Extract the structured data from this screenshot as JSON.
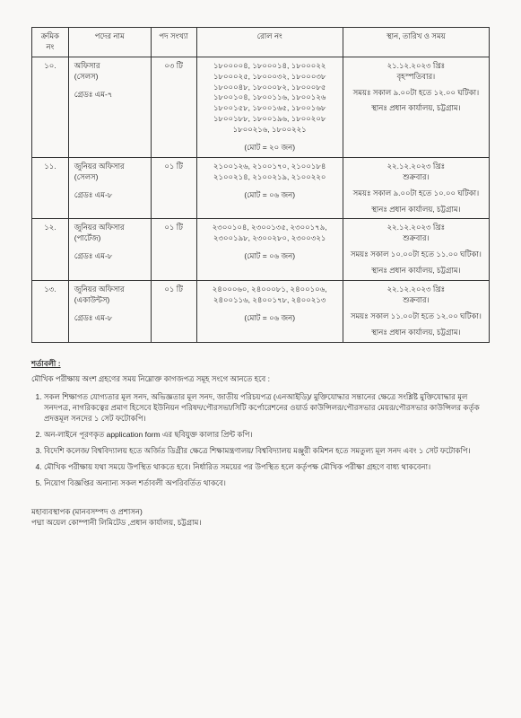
{
  "table": {
    "headers": {
      "serial": "ক্রমিক নং",
      "post": "পদের নাম",
      "count": "পদ সংখ্যা",
      "roll": "রোল নং",
      "venue": "স্থান, তারিখ ও সময়"
    },
    "rows": [
      {
        "serial": "১০.",
        "post_line1": "অফিসার",
        "post_line2": "(সেলস)",
        "post_line3": "গ্রেডঃ এম-৭",
        "count": "০৩ টি",
        "roll_lines": "১৮০০০০৪, ১৮০০০১৪, ১৮০০০২২\n১৮০০০২৫, ১৮০০০৩২, ১৮০০০৩৮\n১৮০০০৪৮, ১৮০০০৮২, ১৮০০০৮৫\n১৮০০১০৪, ১৮০০১১৬, ১৮০০১২৬\n১৮০০১৫৮, ১৮০০১৬৫, ১৮০০১৬৮\n১৮০০১৮৮, ১৮০০১৯৬, ১৮০০২০৮\n১৮০০২১৬, ১৮০০২২১",
        "roll_total": "(মোট = ২০ জন)",
        "venue_date": "২১.১২.২০২৩ খ্রিঃ",
        "venue_day": "বৃহস্পতিবার।",
        "venue_time": "সময়ঃ সকাল ৯.০০টা হতে ১২.০০ ঘটিকা।",
        "venue_place": "স্থানঃ প্রধান কার্যালয়, চট্টগ্রাম।"
      },
      {
        "serial": "১১.",
        "post_line1": "জুনিয়র অফিসার",
        "post_line2": "(সেলস)",
        "post_line3": "গ্রেডঃ এম-৮",
        "count": "০১ টি",
        "roll_lines": "২১০০১২৬, ২১০০১৭০, ২১০০১৮৪\n২১০০২১৪, ২১০০২১৯, ২১০০২২০",
        "roll_total": "(মোট = ০৬ জন)",
        "venue_date": "২২.১২.২০২৩ খ্রিঃ",
        "venue_day": "শুক্রবার।",
        "venue_time": "সময়ঃ সকাল ৯.০০টা হতে ১০.০০ ঘটিকা।",
        "venue_place": "স্থানঃ প্রধান কার্যালয়, চট্টগ্রাম।"
      },
      {
        "serial": "১২.",
        "post_line1": "জুনিয়র অফিসার",
        "post_line2": "(পার্টেজ)",
        "post_line3": "গ্রেডঃ এম-৮",
        "count": "০১ টি",
        "roll_lines": "২৩০০১০৪, ২৩০০১৩৫, ২৩০০১৭৯,\n২৩০০১৯৮, ২৩০০২৮০, ২৩০০৩২১",
        "roll_total": "(মোট = ০৬ জন)",
        "venue_date": "২২.১২.২০২৩ খ্রিঃ",
        "venue_day": "শুক্রবার।",
        "venue_time": "সময়ঃ সকাল ১০.০০টা হতে ১১.০০ ঘটিকা।",
        "venue_place": "স্থানঃ প্রধান কার্যালয়, চট্টগ্রাম।"
      },
      {
        "serial": "১৩.",
        "post_line1": "জুনিয়র অফিসার",
        "post_line2": "(একাউন্টস)",
        "post_line3": "গ্রেডঃ এম-৮",
        "count": "০১ টি",
        "roll_lines": "২৪০০০৬০, ২৪০০০৮১, ২৪০০১০৬,\n২৪০০১১৬, ২৪০০১৭৮, ২৪০০২১৩",
        "roll_total": "(মোট = ০৬ জন)",
        "venue_date": "২২.১২.২০২৩ খ্রিঃ",
        "venue_day": "শুক্রবার।",
        "venue_time": "সময়ঃ সকাল ১১.০০টা হতে ১২.০০ ঘটিকা।",
        "venue_place": "স্থানঃ প্রধান কার্যালয়, চট্টগ্রাম।"
      }
    ]
  },
  "conditions": {
    "title": "শর্তাবলী :",
    "intro": "মৌখিক পরীক্ষায় অংশ গ্রহণের সময় নিম্নোক্ত কাগজপত্র সমূহ সংগে আনতে হবে :",
    "items": [
      "সকল শিক্ষাগত যোগ্যতার মূল সনদ, অভিজ্ঞতার মূল সনদ, জাতীয় পরিচয়পত্র (এনআইডি)/ মুক্তিযোদ্ধার সন্তানের ক্ষেত্রে সংশ্লিষ্ট মুক্তিযোদ্ধার মূল সনদপত্র, নাগরিকত্বের প্রমাণ হিসেবে ইউনিয়ন পরিষদ/পৌরসভা/সিটি কর্পোরেশনের ওয়ার্ড কাউন্সিলর/পৌরসভার মেয়র/পৌরসভার কাউন্সিলর কর্তৃক প্রদত্তমূল সনদের ১ সেট ফটোকপি।",
      "অন-লাইনে পূরণকৃত application form এর ছবিযুক্ত কালার প্রিন্ট কপি।",
      "বিদেশি কলেজ/ বিশ্ববিদ্যালয় হতে অর্জিত ডিগ্রীর ক্ষেত্রে শিক্ষামন্ত্রণালয়/ বিশ্ববিদ্যালয় মঞ্জুরী কমিশন হতে সমতুল্য মূল সনদ এবং ১ সেট ফটোকপি।",
      "মৌখিক পরীক্ষায় যথা সময়ে উপস্থিত থাকতে হবে। নির্ধারিত সময়ের পর উপস্থিত হলে কর্তৃপক্ষ মৌখিক পরীক্ষা গ্রহণে বাধ্য থাকবেনা।",
      "নিয়োগ বিজ্ঞপ্তির অন্যান্য সকল শর্তাবলী অপরিবর্তিত থাকবে।"
    ]
  },
  "signature": {
    "line1": "মহাব্যবস্থাপক (মানবসম্পদ ও প্রশাসন)",
    "line2": "পদ্মা অয়েল কোম্পানী লিমিটেড ,প্রধান কার্যালয়, চট্টগ্রাম।"
  }
}
